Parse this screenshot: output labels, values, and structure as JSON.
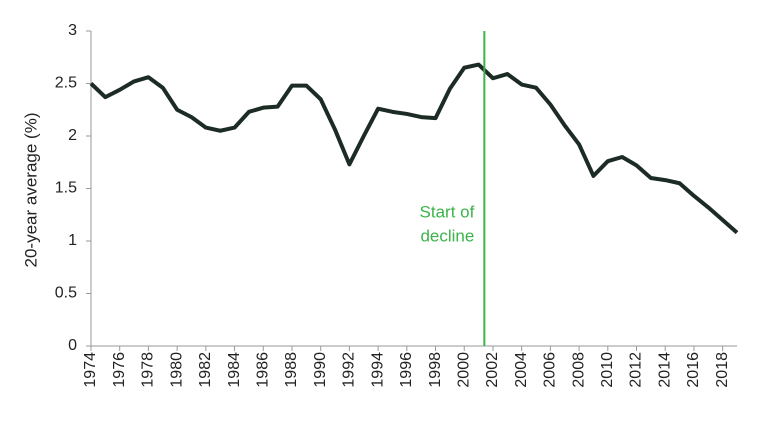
{
  "chart_data": {
    "type": "line",
    "y_label": "20-year average (%)",
    "x": [
      1974,
      1975,
      1976,
      1977,
      1978,
      1979,
      1980,
      1981,
      1982,
      1983,
      1984,
      1985,
      1986,
      1987,
      1988,
      1989,
      1990,
      1991,
      1992,
      1993,
      1994,
      1995,
      1996,
      1997,
      1998,
      1999,
      2000,
      2001,
      2002,
      2003,
      2004,
      2005,
      2006,
      2007,
      2008,
      2009,
      2010,
      2011,
      2012,
      2013,
      2014,
      2015,
      2016,
      2017,
      2018,
      2019
    ],
    "values": [
      2.5,
      2.37,
      2.44,
      2.52,
      2.56,
      2.46,
      2.25,
      2.18,
      2.08,
      2.05,
      2.08,
      2.23,
      2.27,
      2.28,
      2.48,
      2.48,
      2.35,
      2.06,
      1.73,
      2.0,
      2.26,
      2.23,
      2.21,
      2.18,
      2.17,
      2.45,
      2.65,
      2.68,
      2.55,
      2.59,
      2.49,
      2.46,
      2.3,
      2.1,
      1.92,
      1.62,
      1.76,
      1.8,
      1.72,
      1.6,
      1.58,
      1.55,
      1.43,
      1.32,
      1.2,
      1.08
    ],
    "color": "#1c2b24",
    "xlim": [
      1974,
      2019
    ],
    "xticks": [
      1974,
      1976,
      1978,
      1980,
      1982,
      1984,
      1986,
      1988,
      1990,
      1992,
      1994,
      1996,
      1998,
      2000,
      2002,
      2004,
      2006,
      2008,
      2010,
      2012,
      2014,
      2016,
      2018
    ],
    "ylim": [
      0,
      3
    ],
    "yticks": [
      0,
      0.5,
      1,
      1.5,
      2,
      2.5,
      3
    ],
    "annotation": {
      "lines": [
        "Start of",
        "decline"
      ],
      "x": 2001.4,
      "color": "#3cb34a"
    }
  }
}
